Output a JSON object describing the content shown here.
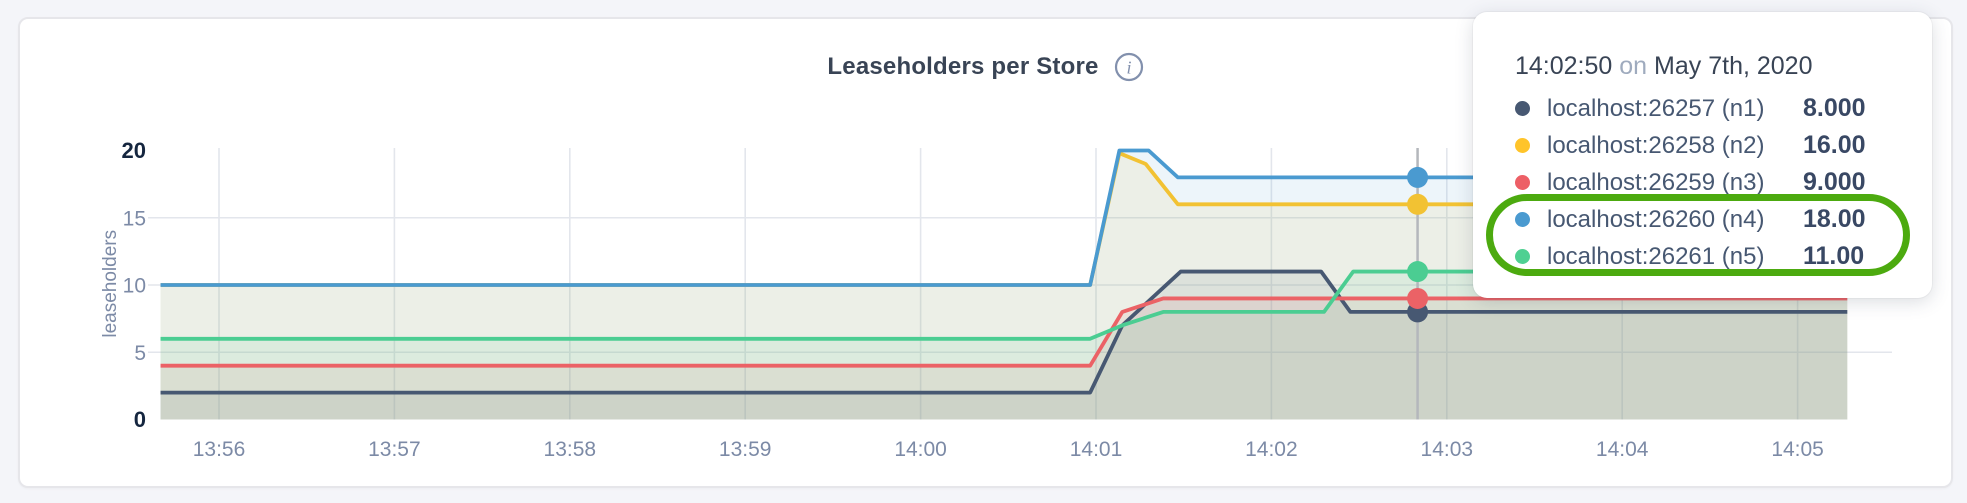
{
  "page": {
    "background": "#f4f5f9"
  },
  "card": {
    "background": "#ffffff",
    "border_color": "#e6e6ea"
  },
  "icons": {
    "info_glyph": "i"
  },
  "chart_data": {
    "type": "line",
    "title": "Leaseholders per Store",
    "xlabel": "",
    "ylabel": "leaseholders",
    "x_ticks": [
      "13:56",
      "13:57",
      "13:58",
      "13:59",
      "14:00",
      "14:01",
      "14:02",
      "14:03",
      "14:04",
      "14:05"
    ],
    "y_ticks": [
      0,
      5,
      10,
      15,
      20
    ],
    "y_ticks_emphasized": [
      0,
      20
    ],
    "ylim": [
      0,
      20
    ],
    "x_domain": [
      "13:55:40",
      "14:05:17"
    ],
    "grid": true,
    "legend_position": "hover-tooltip",
    "hover_time": "14:02:50",
    "fill_opacity": 0.1,
    "series": [
      {
        "id": "n1",
        "name": "localhost:26257 (n1)",
        "color": "#475872",
        "hover_value": 8,
        "points": [
          [
            "13:55:40",
            2
          ],
          [
            "14:00:58",
            2
          ],
          [
            "14:01:09",
            7
          ],
          [
            "14:01:29",
            11
          ],
          [
            "14:02:17",
            11
          ],
          [
            "14:02:27",
            8
          ],
          [
            "14:05:17",
            8
          ]
        ]
      },
      {
        "id": "n2",
        "name": "localhost:26258 (n2)",
        "color": "#f2c233",
        "hover_value": 16,
        "points": [
          [
            "13:55:40",
            10
          ],
          [
            "14:00:58",
            10
          ],
          [
            "14:01:08",
            19.8
          ],
          [
            "14:01:17",
            19
          ],
          [
            "14:01:28",
            16
          ],
          [
            "14:05:17",
            16
          ]
        ]
      },
      {
        "id": "n3",
        "name": "localhost:26259 (n3)",
        "color": "#eb6266",
        "hover_value": 9,
        "points": [
          [
            "13:55:40",
            4
          ],
          [
            "14:00:58",
            4
          ],
          [
            "14:01:09",
            8
          ],
          [
            "14:01:23",
            9
          ],
          [
            "14:05:17",
            9
          ]
        ]
      },
      {
        "id": "n4",
        "name": "localhost:26260 (n4)",
        "color": "#4a9ad0",
        "hover_value": 18,
        "points": [
          [
            "13:55:40",
            10
          ],
          [
            "14:00:58",
            10
          ],
          [
            "14:01:08",
            20
          ],
          [
            "14:01:18",
            20
          ],
          [
            "14:01:28",
            18
          ],
          [
            "14:05:17",
            18
          ]
        ]
      },
      {
        "id": "n5",
        "name": "localhost:26261 (n5)",
        "color": "#4bcd92",
        "hover_value": 11,
        "points": [
          [
            "13:55:40",
            6
          ],
          [
            "14:00:58",
            6
          ],
          [
            "14:01:09",
            7
          ],
          [
            "14:01:23",
            8
          ],
          [
            "14:02:18",
            8
          ],
          [
            "14:02:28",
            11
          ],
          [
            "14:05:17",
            11
          ]
        ]
      }
    ],
    "colors": {
      "grid": "#e3e6ec",
      "hover_line": "#b4b7bc",
      "tick_label": "#7c8aa6",
      "tick_label_emphasized": "#15263f",
      "title": "#394455",
      "icon": "#8290ad"
    }
  },
  "tooltip": {
    "time": "14:02:50",
    "connector": "on",
    "date": "May 7th, 2020",
    "rows": [
      {
        "label": "localhost:26257 (n1)",
        "value": "8.000",
        "color": "#475872"
      },
      {
        "label": "localhost:26258 (n2)",
        "value": "16.00",
        "color": "#ffc42a"
      },
      {
        "label": "localhost:26259 (n3)",
        "value": "9.000",
        "color": "#ed5f66"
      },
      {
        "label": "localhost:26260 (n4)",
        "value": "18.00",
        "color": "#4a9ad0"
      },
      {
        "label": "localhost:26261 (n5)",
        "value": "11.00",
        "color": "#4fd092"
      }
    ]
  },
  "annotation": {
    "shape": "ellipse",
    "color": "#4caa0f",
    "highlights": [
      "localhost:26260 (n4)",
      "localhost:26261 (n5)"
    ]
  }
}
